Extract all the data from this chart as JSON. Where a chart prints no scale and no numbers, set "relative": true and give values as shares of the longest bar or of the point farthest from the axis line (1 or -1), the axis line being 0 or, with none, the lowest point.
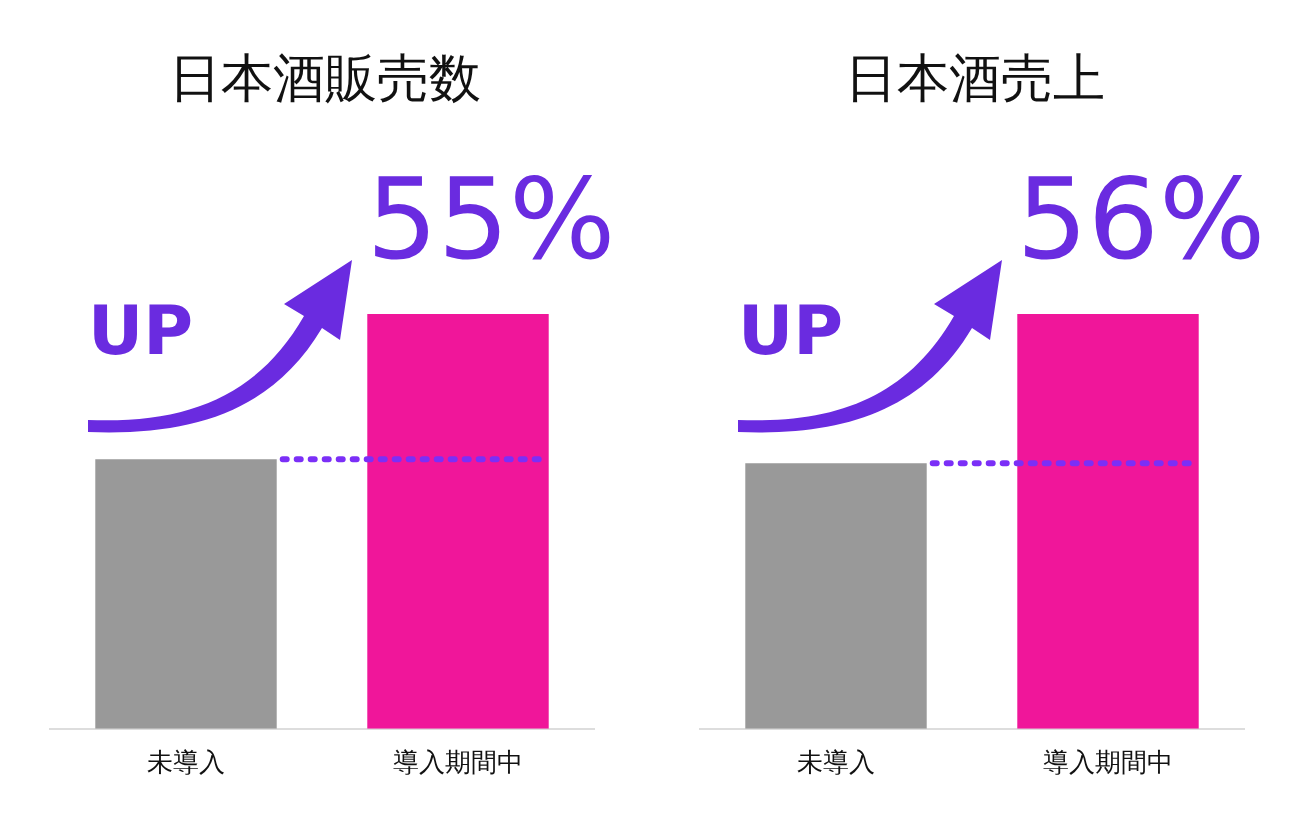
{
  "chart_data": [
    {
      "type": "bar",
      "title": "日本酒販売数",
      "categories": [
        "未導入",
        "導入期間中"
      ],
      "values": [
        0.65,
        1
      ],
      "colors": [
        "#999999",
        "#f0169a"
      ],
      "relative": true,
      "annotations": [
        "UP",
        "55%"
      ],
      "ref_lines": [
        {
          "axis": "y",
          "value": 0.65,
          "color": "#7b2ff7",
          "line_style": "dotted"
        }
      ],
      "grid": false,
      "legend": false
    },
    {
      "type": "bar",
      "title": "日本酒売上",
      "categories": [
        "未導入",
        "導入期間中"
      ],
      "values": [
        0.64,
        1
      ],
      "colors": [
        "#999999",
        "#f0169a"
      ],
      "relative": true,
      "annotations": [
        "UP",
        "56%"
      ],
      "ref_lines": [
        {
          "axis": "y",
          "value": 0.64,
          "color": "#7b2ff7",
          "line_style": "dotted"
        }
      ],
      "grid": false,
      "legend": false
    }
  ]
}
